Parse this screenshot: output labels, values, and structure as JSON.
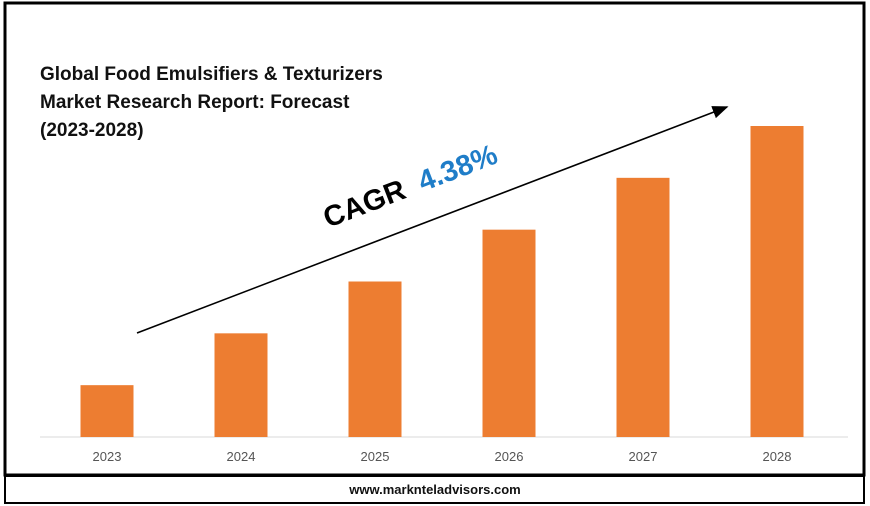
{
  "chart_data": {
    "type": "bar",
    "title_lines": [
      "Global Food Emulsifiers & Texturizers",
      "Market Research Report: Forecast",
      "(2023-2028)"
    ],
    "categories": [
      "2023",
      "2024",
      "2025",
      "2026",
      "2027",
      "2028"
    ],
    "values": [
      1,
      2,
      3,
      4,
      5,
      6
    ],
    "bar_color": "#ED7D31",
    "annotation": {
      "label": "CAGR",
      "value": "4.38%",
      "value_color": "#1F7DC8"
    },
    "xlabel": "",
    "ylabel": "",
    "grid": false,
    "legend": "none"
  },
  "footer": {
    "url": "www.marknteladvisors.com"
  }
}
